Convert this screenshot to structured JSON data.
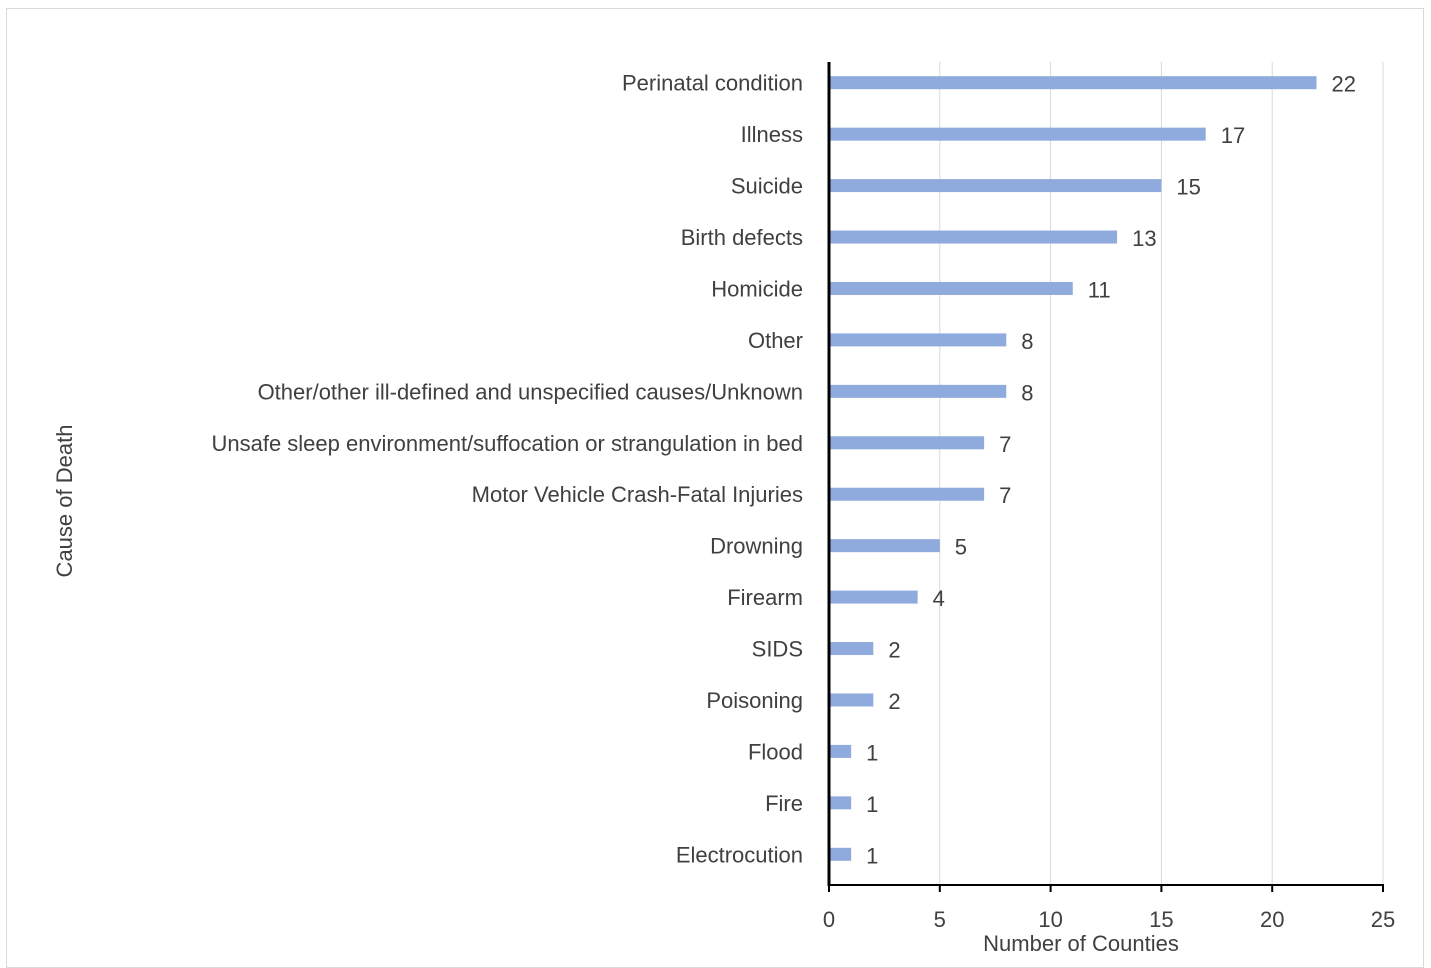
{
  "chart_data": {
    "type": "bar",
    "orientation": "horizontal",
    "categories": [
      "Perinatal condition",
      "Illness",
      "Suicide",
      "Birth defects",
      "Homicide",
      "Other",
      "Other/other ill-defined and unspecified causes/Unknown",
      "Unsafe sleep environment/suffocation or strangulation in bed",
      "Motor Vehicle Crash-Fatal Injuries",
      "Drowning",
      "Firearm",
      "SIDS",
      "Poisoning",
      "Flood",
      "Fire",
      "Electrocution"
    ],
    "values": [
      22,
      17,
      15,
      13,
      11,
      8,
      8,
      7,
      7,
      5,
      4,
      2,
      2,
      1,
      1,
      1
    ],
    "xlabel": "Number of Counties",
    "ylabel": "Cause of Death",
    "xlim": [
      0,
      25
    ],
    "xticks": [
      "0",
      "5",
      "10",
      "15",
      "20",
      "25"
    ],
    "grid": "vertical",
    "data_labels": true,
    "bar_color": "#8faadc",
    "axis_color": "#000000",
    "grid_color": "#d9d9d9"
  }
}
